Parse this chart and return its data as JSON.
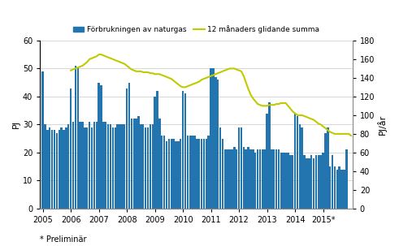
{
  "ylabel_left": "PJ",
  "ylabel_right": "PJ/år",
  "footnote": "* Preliminär",
  "bar_color": "#2275AE",
  "line_color": "#BFCA00",
  "ylim_left": [
    0,
    60
  ],
  "ylim_right": [
    0,
    180
  ],
  "yticks_left": [
    0,
    10,
    20,
    30,
    40,
    50,
    60
  ],
  "yticks_right": [
    0,
    20,
    40,
    60,
    80,
    100,
    120,
    140,
    160,
    180
  ],
  "legend_bar": "Förbrukningen av naturgas",
  "legend_line": "12 månaders glidande summa",
  "bar_values": [
    49,
    30,
    28,
    29,
    28,
    28,
    27,
    28,
    29,
    28,
    29,
    30,
    43,
    31,
    51,
    50,
    31,
    31,
    29,
    29,
    31,
    29,
    31,
    31,
    45,
    44,
    31,
    31,
    30,
    30,
    29,
    29,
    30,
    30,
    30,
    30,
    43,
    45,
    32,
    32,
    32,
    33,
    30,
    30,
    29,
    29,
    30,
    30,
    40,
    42,
    32,
    26,
    26,
    24,
    25,
    25,
    25,
    24,
    24,
    25,
    42,
    41,
    26,
    26,
    26,
    26,
    25,
    25,
    25,
    25,
    25,
    26,
    50,
    50,
    47,
    46,
    29,
    25,
    21,
    21,
    21,
    21,
    22,
    21,
    29,
    29,
    22,
    21,
    22,
    21,
    21,
    20,
    21,
    21,
    21,
    21,
    34,
    38,
    21,
    21,
    21,
    21,
    20,
    20,
    20,
    20,
    19,
    19,
    34,
    33,
    30,
    29,
    19,
    18,
    18,
    19,
    18,
    19,
    19,
    19,
    20,
    27,
    29,
    15,
    19,
    15,
    14,
    15,
    14,
    14,
    21,
    0
  ],
  "line_x_months": [
    12,
    13,
    14,
    15,
    16,
    17,
    18,
    19,
    20,
    21,
    22,
    23,
    24,
    25,
    26,
    27,
    28,
    29,
    30,
    31,
    32,
    33,
    34,
    35,
    36,
    37,
    38,
    39,
    40,
    41,
    42,
    43,
    44,
    45,
    46,
    47,
    48,
    49,
    50,
    51,
    52,
    53,
    54,
    55,
    56,
    57,
    58,
    59,
    60,
    61,
    62,
    63,
    64,
    65,
    66,
    67,
    68,
    69,
    70,
    71,
    72,
    73,
    74,
    75,
    76,
    77,
    78,
    79,
    80,
    81,
    82,
    83,
    84,
    85,
    86,
    87,
    88,
    89,
    90,
    91,
    92,
    93,
    94,
    95,
    96,
    97,
    98,
    99,
    100,
    101,
    102,
    103,
    104,
    105,
    106,
    107,
    108,
    109,
    110,
    111,
    112,
    113,
    114,
    115,
    116,
    117,
    118,
    119,
    120,
    121,
    122,
    123,
    124,
    125,
    126,
    127,
    128,
    129,
    130,
    131,
    132
  ],
  "line_y_right": [
    148,
    149,
    150,
    151,
    152,
    153,
    155,
    157,
    160,
    161,
    162,
    163,
    165,
    165,
    164,
    163,
    162,
    161,
    160,
    159,
    158,
    157,
    156,
    155,
    153,
    151,
    149,
    148,
    147,
    147,
    147,
    146,
    146,
    146,
    145,
    145,
    144,
    144,
    144,
    143,
    142,
    141,
    140,
    139,
    137,
    135,
    133,
    131,
    130,
    130,
    131,
    132,
    133,
    134,
    135,
    136,
    138,
    139,
    140,
    141,
    142,
    143,
    144,
    145,
    146,
    147,
    148,
    149,
    150,
    150,
    150,
    149,
    148,
    147,
    142,
    135,
    128,
    122,
    118,
    115,
    112,
    111,
    110,
    110,
    110,
    111,
    111,
    111,
    112,
    112,
    113,
    113,
    113,
    110,
    107,
    104,
    102,
    100,
    100,
    100,
    99,
    98,
    97,
    96,
    95,
    93,
    91,
    90,
    88,
    86,
    84,
    82,
    81,
    80,
    80,
    80,
    80,
    80,
    80,
    80,
    78
  ]
}
